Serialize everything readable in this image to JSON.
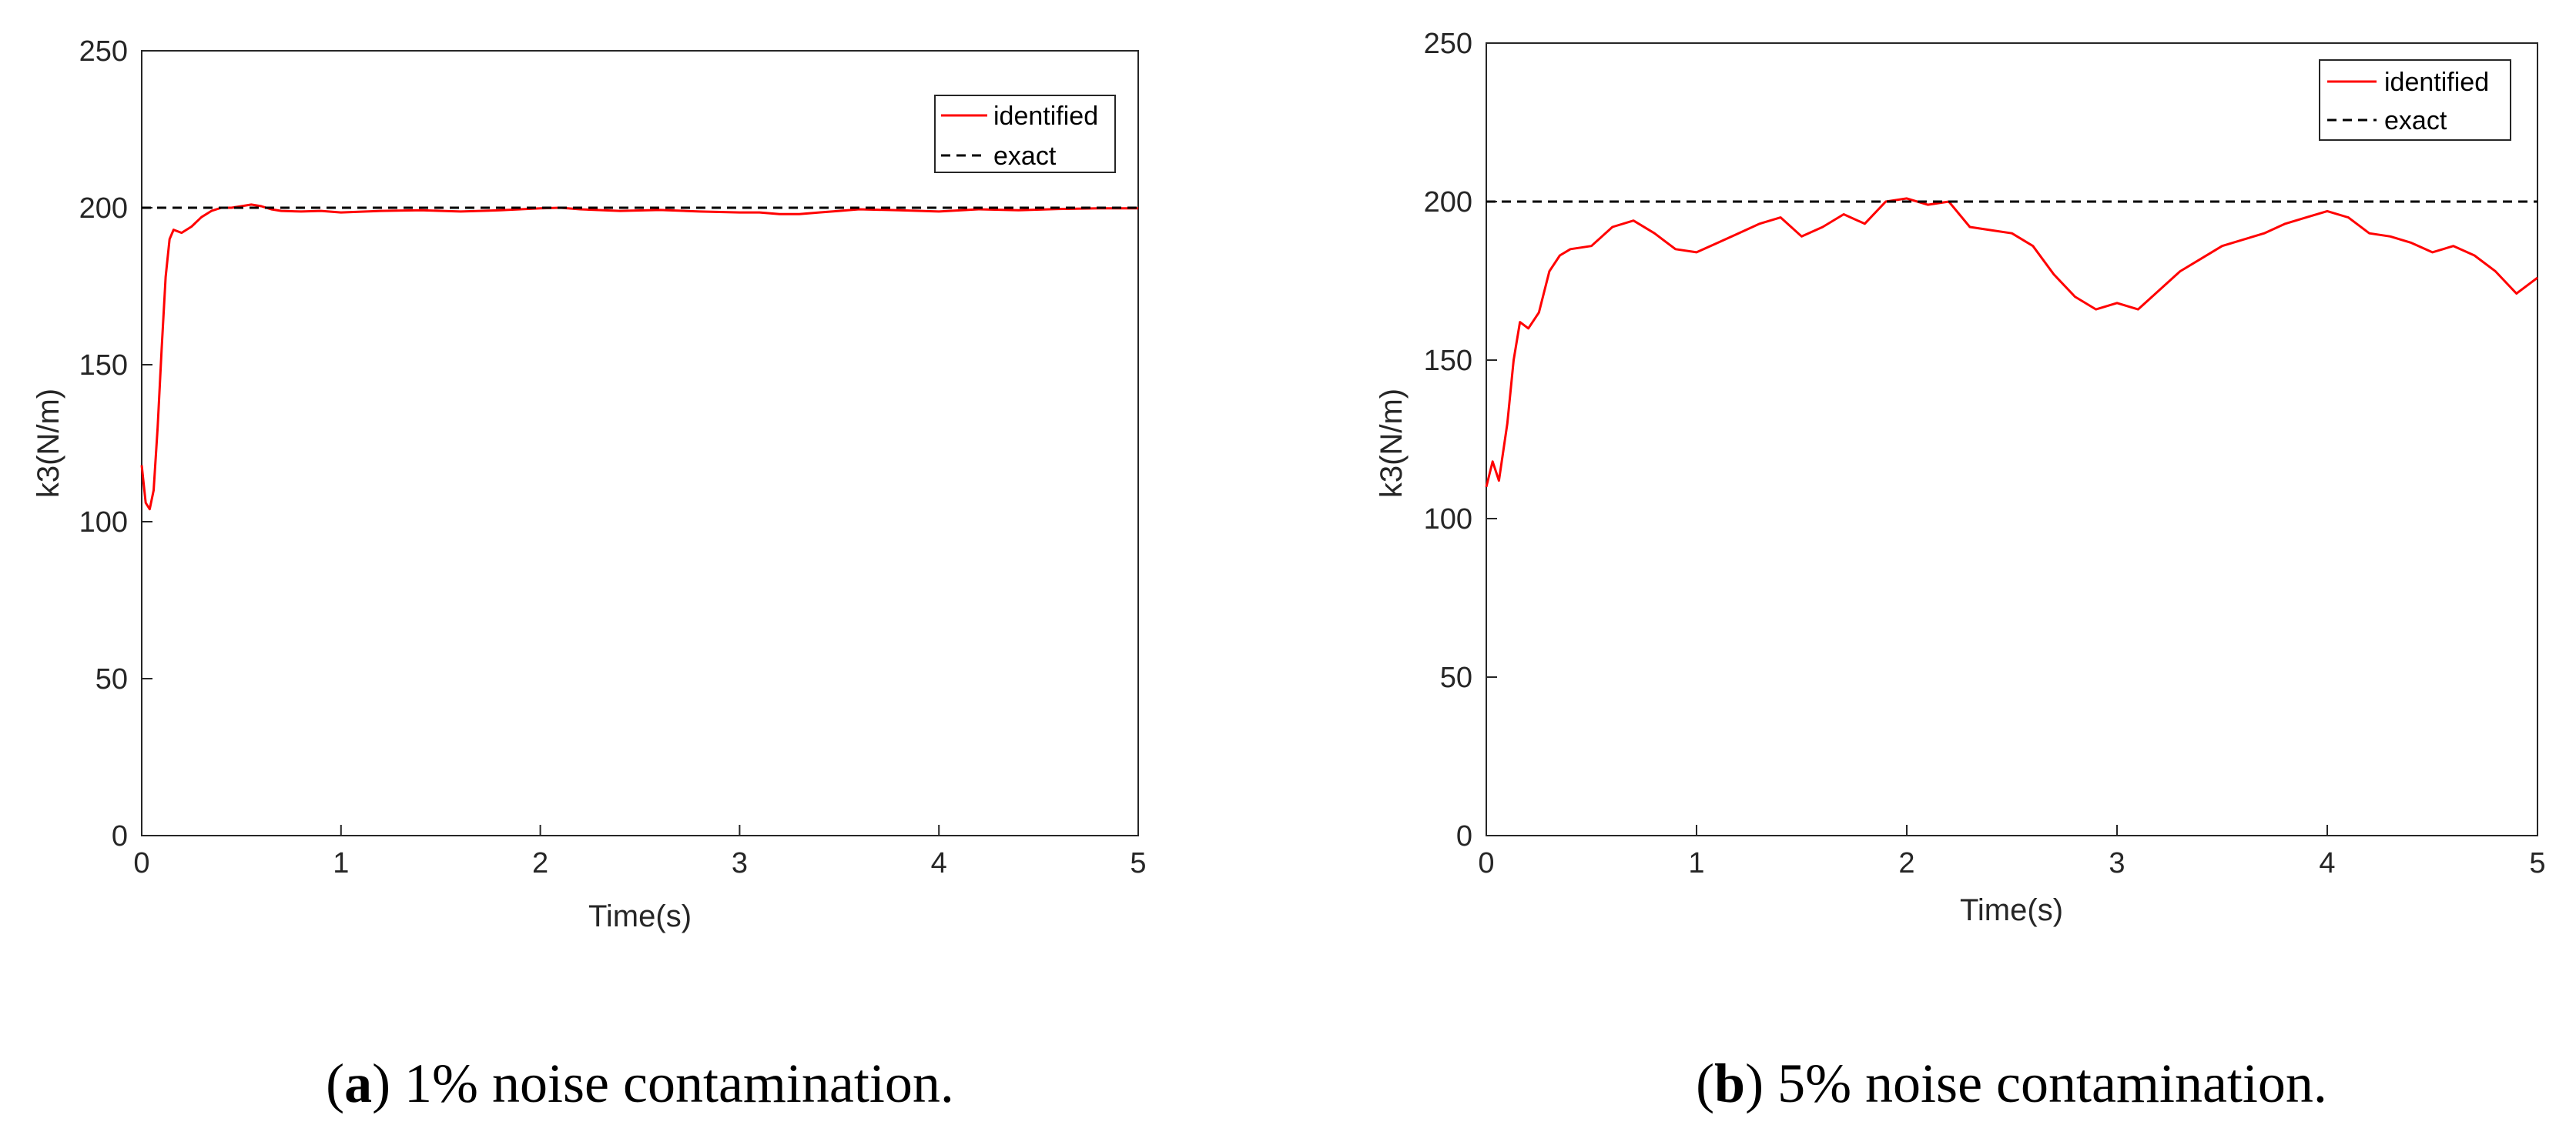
{
  "colors": {
    "identified": "#ff0000",
    "exact": "#000000",
    "axis": "#262626"
  },
  "chart_data": [
    {
      "type": "line",
      "caption": {
        "open": "(",
        "letter": "a",
        "close": ")",
        "text": " 1% noise contamination."
      },
      "xlabel": "Time(s)",
      "ylabel": "k3(N/m)",
      "xlim": [
        0,
        5
      ],
      "ylim": [
        0,
        250
      ],
      "xticks": [
        "0",
        "1",
        "2",
        "3",
        "4",
        "5"
      ],
      "yticks": [
        "0",
        "50",
        "100",
        "150",
        "200",
        "250"
      ],
      "grid": false,
      "legend_position": "top-right",
      "series": [
        {
          "name": "identified",
          "style": "solid",
          "x": [
            0,
            0.02,
            0.04,
            0.06,
            0.08,
            0.1,
            0.12,
            0.14,
            0.16,
            0.2,
            0.25,
            0.3,
            0.35,
            0.4,
            0.45,
            0.5,
            0.55,
            0.6,
            0.65,
            0.7,
            0.8,
            0.9,
            1.0,
            1.2,
            1.4,
            1.6,
            1.8,
            2.0,
            2.1,
            2.2,
            2.4,
            2.6,
            2.8,
            3.0,
            3.1,
            3.2,
            3.3,
            3.4,
            3.5,
            3.6,
            3.8,
            4.0,
            4.2,
            4.4,
            4.6,
            4.8,
            5.0
          ],
          "y": [
            118,
            106,
            104,
            110,
            130,
            155,
            178,
            190,
            193,
            192,
            194,
            197,
            199,
            200,
            200,
            200.5,
            201,
            200.5,
            199.5,
            199,
            198.8,
            199,
            198.5,
            199,
            199.2,
            198.8,
            199.2,
            199.8,
            200,
            199.5,
            199,
            199.3,
            198.8,
            198.5,
            198.5,
            198,
            198,
            198.5,
            199,
            199.5,
            199.2,
            198.8,
            199.5,
            199.2,
            199.6,
            199.8,
            199.8
          ]
        },
        {
          "name": "exact",
          "style": "dashed",
          "x": [
            0,
            5
          ],
          "y": [
            200,
            200
          ]
        }
      ]
    },
    {
      "type": "line",
      "caption": {
        "open": "(",
        "letter": "b",
        "close": ")",
        "text": " 5% noise contamination."
      },
      "xlabel": "Time(s)",
      "ylabel": "k3(N/m)",
      "xlim": [
        0,
        5
      ],
      "ylim": [
        0,
        250
      ],
      "xticks": [
        "0",
        "1",
        "2",
        "3",
        "4",
        "5"
      ],
      "yticks": [
        "0",
        "50",
        "100",
        "150",
        "200",
        "250"
      ],
      "grid": false,
      "legend_position": "top-right",
      "series": [
        {
          "name": "identified",
          "style": "solid",
          "x": [
            0,
            0.03,
            0.06,
            0.1,
            0.13,
            0.16,
            0.2,
            0.25,
            0.3,
            0.35,
            0.4,
            0.5,
            0.6,
            0.7,
            0.8,
            0.9,
            1.0,
            1.1,
            1.2,
            1.3,
            1.4,
            1.5,
            1.6,
            1.7,
            1.8,
            1.9,
            2.0,
            2.1,
            2.2,
            2.3,
            2.4,
            2.5,
            2.6,
            2.7,
            2.8,
            2.9,
            3.0,
            3.1,
            3.2,
            3.3,
            3.4,
            3.5,
            3.6,
            3.7,
            3.8,
            3.9,
            4.0,
            4.1,
            4.2,
            4.3,
            4.4,
            4.5,
            4.6,
            4.7,
            4.8,
            4.9,
            5.0
          ],
          "y": [
            110,
            118,
            112,
            130,
            150,
            162,
            160,
            165,
            178,
            183,
            185,
            186,
            192,
            194,
            190,
            185,
            184,
            187,
            190,
            193,
            195,
            189,
            192,
            196,
            193,
            200,
            201,
            199,
            200,
            192,
            191,
            190,
            186,
            177,
            170,
            166,
            168,
            166,
            172,
            178,
            182,
            186,
            188,
            190,
            193,
            195,
            197,
            195,
            190,
            189,
            187,
            184,
            186,
            183,
            178,
            171,
            176
          ]
        },
        {
          "name": "exact",
          "style": "dashed",
          "x": [
            0,
            5
          ],
          "y": [
            200,
            200
          ]
        }
      ]
    }
  ]
}
